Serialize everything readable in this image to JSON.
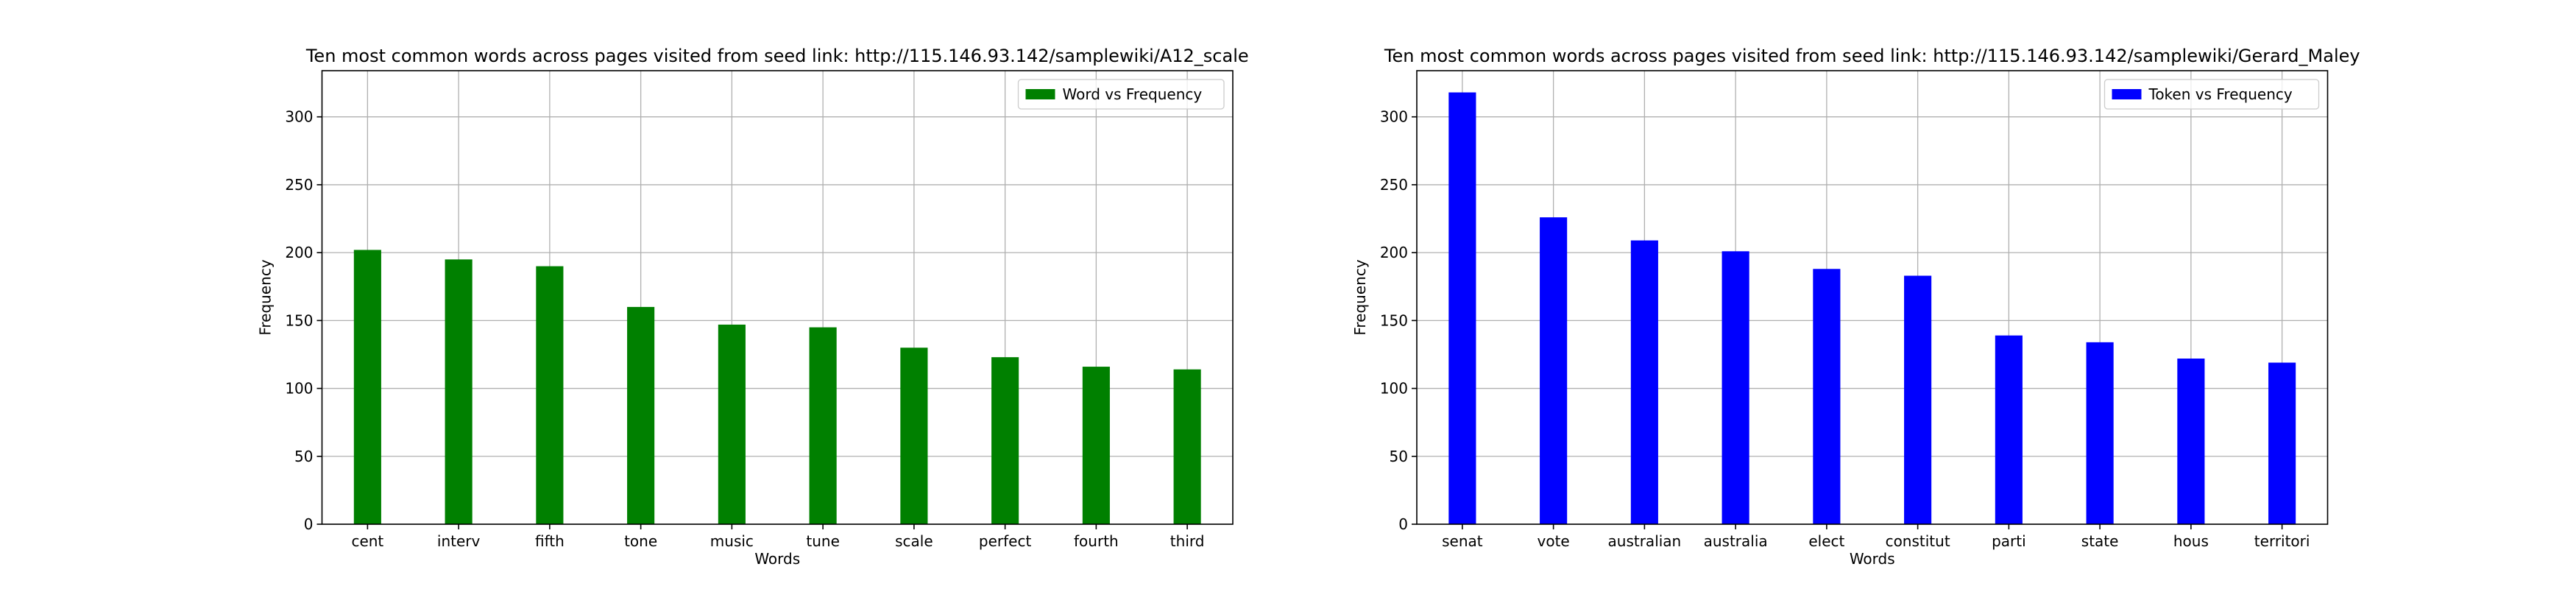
{
  "figure": {
    "background": "#ffffff"
  },
  "chart_data": [
    {
      "type": "bar",
      "title": "Ten most common words across pages visited from seed link: http://115.146.93.142/samplewiki/A12_scale",
      "xlabel": "Words",
      "ylabel": "Frequency",
      "categories": [
        "cent",
        "interv",
        "fifth",
        "tone",
        "music",
        "tune",
        "scale",
        "perfect",
        "fourth",
        "third"
      ],
      "series": [
        {
          "name": "Word vs Frequency",
          "color": "#008000",
          "values": [
            202,
            195,
            190,
            160,
            147,
            145,
            130,
            123,
            116,
            114
          ]
        }
      ],
      "ylim": [
        0,
        334
      ],
      "yticks": [
        0,
        50,
        100,
        150,
        200,
        250,
        300
      ],
      "grid": true,
      "legend": "top-right"
    },
    {
      "type": "bar",
      "title": "Ten most common words across pages visited from seed link: http://115.146.93.142/samplewiki/Gerard_Maley",
      "xlabel": "Words",
      "ylabel": "Frequency",
      "categories": [
        "senat",
        "vote",
        "australian",
        "australia",
        "elect",
        "constitut",
        "parti",
        "state",
        "hous",
        "territori"
      ],
      "series": [
        {
          "name": "Token vs Frequency",
          "color": "#0000ff",
          "values": [
            318,
            226,
            209,
            201,
            188,
            183,
            139,
            134,
            122,
            119
          ]
        }
      ],
      "ylim": [
        0,
        334
      ],
      "yticks": [
        0,
        50,
        100,
        150,
        200,
        250,
        300
      ],
      "grid": true,
      "legend": "top-right"
    }
  ]
}
